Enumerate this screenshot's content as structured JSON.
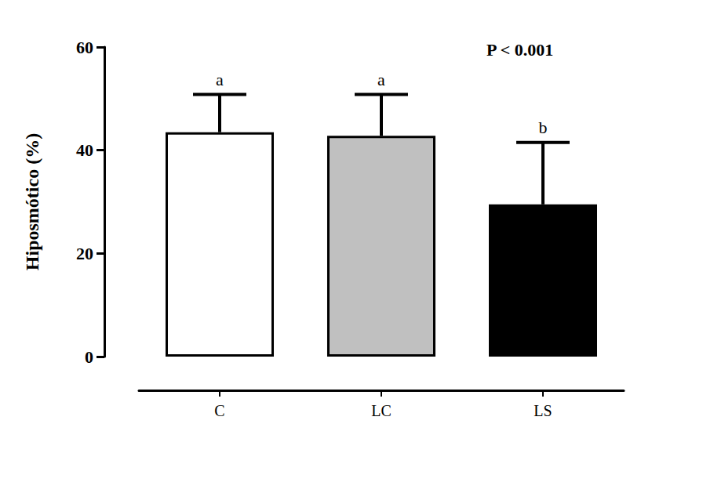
{
  "chart_data": {
    "type": "bar",
    "y_label": "Hiposmótico (%)",
    "annotation": "P < 0.001",
    "categories": [
      "C",
      "LC",
      "LS"
    ],
    "values": [
      43.5,
      42.8,
      29.5
    ],
    "errors": [
      7.3,
      8.0,
      12.0
    ],
    "group_letters": [
      "a",
      "a",
      "b"
    ],
    "colors": [
      "#ffffff",
      "#c0c0c0",
      "#000000"
    ],
    "ylim": [
      0,
      60
    ],
    "yticks": [
      0,
      20,
      40,
      60
    ],
    "grid": false
  }
}
